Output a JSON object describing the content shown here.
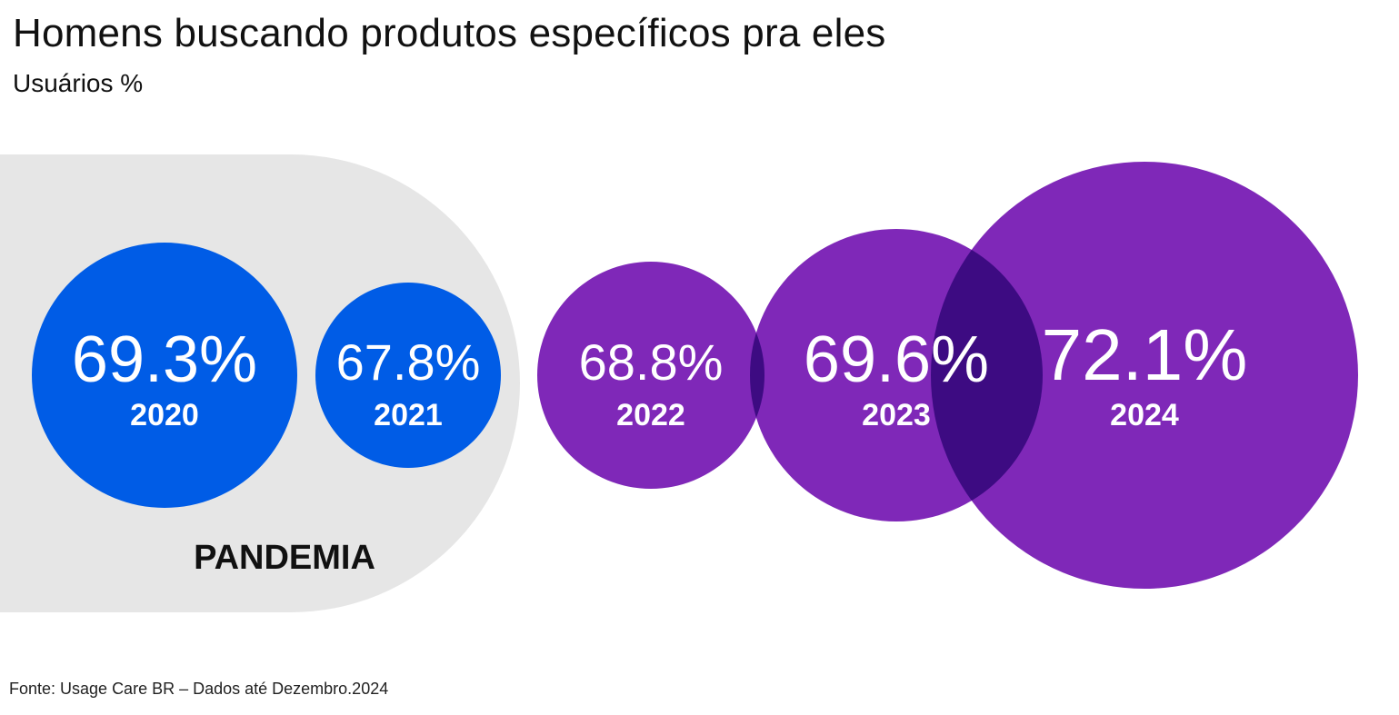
{
  "chart_data": {
    "type": "bubble",
    "title": "Homens buscando produtos específicos pra eles",
    "subtitle": "Usuários %",
    "categories": [
      "2020",
      "2021",
      "2022",
      "2023",
      "2024"
    ],
    "values": [
      69.3,
      67.8,
      68.8,
      69.6,
      72.1
    ],
    "value_labels": [
      "69.3%",
      "67.8%",
      "68.8%",
      "69.6%",
      "72.1%"
    ],
    "highlight_band": {
      "label": "PANDEMIA",
      "categories": [
        "2020",
        "2021"
      ],
      "color": "#e6e6e6"
    },
    "colors": {
      "pandemic": "#005ce6",
      "post_pandemic": "#7f28b8",
      "overlap": "#3d0b82"
    },
    "source": "Fonte: Usage Care BR – Dados até Dezembro.2024"
  }
}
